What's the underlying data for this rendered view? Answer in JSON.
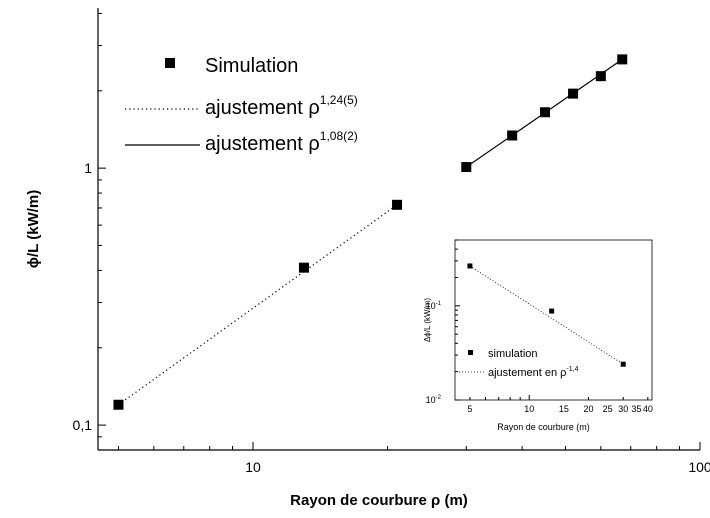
{
  "chart_data": [
    {
      "type": "scatter",
      "xscale": "log",
      "yscale": "log",
      "xlabel": "Rayon de courbure ρ (m)",
      "ylabel": "ϕ/L (kW/m)",
      "xlim": [
        4.5,
        100
      ],
      "ylim": [
        0.08,
        4.2
      ],
      "xticks": [
        {
          "v": 10,
          "label": "10"
        },
        {
          "v": 100,
          "label": "100"
        }
      ],
      "yticks": [
        {
          "v": 0.1,
          "label": "0,1"
        },
        {
          "v": 1,
          "label": "1"
        }
      ],
      "series": [
        {
          "name": "Simulation",
          "marker": "square",
          "x": [
            5,
            13,
            21,
            30,
            38,
            45,
            52,
            60,
            67
          ],
          "y": [
            0.12,
            0.41,
            0.72,
            1.01,
            1.34,
            1.65,
            1.95,
            2.28,
            2.65
          ]
        }
      ],
      "fits": [
        {
          "name": "ajustement ρ",
          "exponent": "1,24(5)",
          "style": "dotted",
          "x": [
            5,
            21
          ],
          "y": [
            0.12,
            0.72
          ]
        },
        {
          "name": "ajustement ρ",
          "exponent": "1,08(2)",
          "style": "solid",
          "x": [
            30,
            67
          ],
          "y": [
            1.01,
            2.65
          ]
        }
      ],
      "legend_position": "top-left"
    },
    {
      "type": "scatter",
      "inset": true,
      "xscale": "log",
      "yscale": "log",
      "xlabel": "Rayon de courbure (m)",
      "ylabel": "Δϕ/L (kW/m)",
      "xlim": [
        4.2,
        42
      ],
      "ylim": [
        0.01,
        0.5
      ],
      "xticks": [
        {
          "v": 5,
          "label": "5"
        },
        {
          "v": 10,
          "label": "10"
        },
        {
          "v": 15,
          "label": "15"
        },
        {
          "v": 20,
          "label": "20"
        },
        {
          "v": 25,
          "label": "25"
        },
        {
          "v": 30,
          "label": "30"
        },
        {
          "v": 35,
          "label": "35"
        },
        {
          "v": 40,
          "label": "40"
        }
      ],
      "yticks": [
        {
          "v": 0.01,
          "label": "10",
          "exp": "-2"
        },
        {
          "v": 0.1,
          "label": "10",
          "exp": "-1"
        }
      ],
      "series": [
        {
          "name": "simulation",
          "marker": "square",
          "x": [
            5,
            13,
            30
          ],
          "y": [
            0.265,
            0.088,
            0.024
          ]
        }
      ],
      "fits": [
        {
          "name": "ajustement en ρ",
          "exponent": "-1,4",
          "style": "dotted",
          "x": [
            5,
            30
          ],
          "y": [
            0.265,
            0.024
          ]
        }
      ],
      "legend_position": "bottom-left"
    }
  ]
}
